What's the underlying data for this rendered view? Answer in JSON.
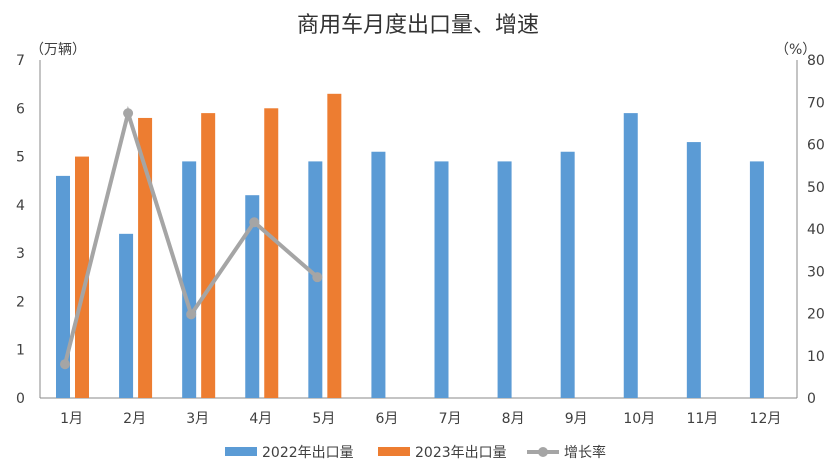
{
  "chart_data": {
    "type": "bar",
    "title": "商用车月度出口量、增速",
    "ylabel_left": "（万辆）",
    "ylabel_right": "（%）",
    "ylim_left": [
      0,
      7
    ],
    "ylim_right": [
      0,
      80
    ],
    "yticks_left": [
      "0",
      "1",
      "2",
      "3",
      "4",
      "5",
      "6",
      "7"
    ],
    "yticks_right": [
      "0",
      "10",
      "20",
      "30",
      "40",
      "50",
      "60",
      "70",
      "80"
    ],
    "grid": false,
    "legend_position": "bottom",
    "categories": [
      "1月",
      "2月",
      "3月",
      "4月",
      "5月",
      "6月",
      "7月",
      "8月",
      "9月",
      "10月",
      "11月",
      "12月"
    ],
    "series": [
      {
        "name": "2022年出口量",
        "type": "bar",
        "axis": "left",
        "color": "#5B9BD5",
        "values": [
          4.6,
          3.4,
          4.9,
          4.2,
          4.9,
          5.1,
          4.9,
          4.9,
          5.1,
          5.9,
          5.3,
          4.9
        ]
      },
      {
        "name": "2023年出口量",
        "type": "bar",
        "axis": "left",
        "color": "#ED7D31",
        "values": [
          5.0,
          5.8,
          5.9,
          6.0,
          6.3,
          null,
          null,
          null,
          null,
          null,
          null,
          null
        ]
      },
      {
        "name": "增长率",
        "type": "line",
        "axis": "right",
        "color": "#A5A5A5",
        "values": [
          8.0,
          67.4,
          19.8,
          41.6,
          28.6,
          null,
          null,
          null,
          null,
          null,
          null,
          null
        ]
      }
    ]
  }
}
